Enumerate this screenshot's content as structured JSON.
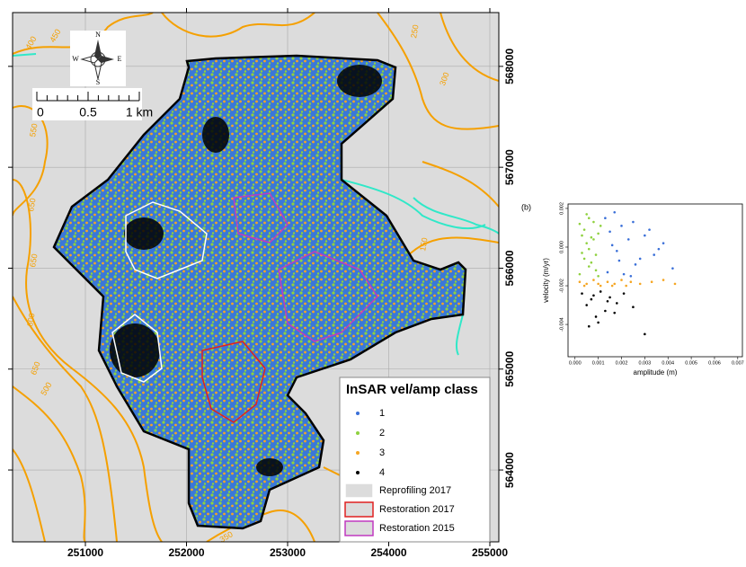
{
  "map": {
    "xlim": [
      250280,
      255089
    ],
    "ylim": [
      563288,
      568533
    ],
    "xticks": [
      251000,
      252000,
      253000,
      254000,
      255000
    ],
    "yticks": [
      564000,
      565000,
      566000,
      567000,
      568000
    ],
    "grid": true,
    "contour_labels": [
      "400",
      "450",
      "250",
      "300",
      "550",
      "650",
      "150",
      "650",
      "600",
      "650",
      "500",
      "350"
    ],
    "compass": {
      "n": "N",
      "s": "S",
      "e": "E",
      "w": "W"
    },
    "scale_bar": [
      "0",
      "0.5",
      "1 km"
    ],
    "legend": {
      "title": "InSAR vel/amp class",
      "points": [
        {
          "label": "1",
          "color": "#3a6fd8"
        },
        {
          "label": "2",
          "color": "#8fd13f"
        },
        {
          "label": "3",
          "color": "#f5a623"
        },
        {
          "label": "4",
          "color": "#000000"
        }
      ],
      "areas": [
        {
          "label": "Reprofiling 2017",
          "color": "#ffffff"
        },
        {
          "label": "Restoration 2017",
          "color": "#e02020"
        },
        {
          "label": "Restoration 2015",
          "color": "#c03ac0"
        }
      ]
    }
  },
  "chart_data": {
    "type": "scatter",
    "panel_label": "(b)",
    "x_label": "amplitude (m)",
    "y_label": "velocity (m/yr)",
    "xlim": [
      -0.0003,
      0.0072
    ],
    "ylim": [
      -0.00567,
      0.00223
    ],
    "xticks": [
      {
        "value": 0,
        "label": "0.000"
      },
      {
        "value": 0.001,
        "label": "0.001"
      },
      {
        "value": 0.002,
        "label": "0.002"
      },
      {
        "value": 0.003,
        "label": "0.003"
      },
      {
        "value": 0.004,
        "label": "0.004"
      },
      {
        "value": 0.005,
        "label": "0.005"
      },
      {
        "value": 0.006,
        "label": "0.006"
      },
      {
        "value": 0.007,
        "label": "0.007"
      }
    ],
    "yticks": [
      {
        "value": 0.002,
        "label": "0.002"
      },
      {
        "value": 0,
        "label": "0.000"
      },
      {
        "value": -0.002,
        "label": "-0.002"
      },
      {
        "value": -0.004,
        "label": "-0.004"
      }
    ],
    "series": [
      {
        "name": "2",
        "color": "#8fd13f",
        "x": [
          0.0002,
          0.0004,
          0.0006,
          0.0008,
          0.001,
          0.0003,
          0.0005,
          0.0007,
          0.0009,
          0.0011,
          0.0002,
          0.0004,
          0.0006,
          0.0008,
          0.001,
          0.0005,
          0.0007,
          0.0003,
          0.0009,
          0.0006
        ],
        "values": [
          0.0012,
          0.0009,
          0.0015,
          0.0004,
          0.0007,
          -0.0003,
          0.0002,
          -0.0008,
          -0.0012,
          0.0011,
          -0.0014,
          -0.0006,
          -0.0001,
          0.0013,
          -0.0015,
          0.0017,
          0.0005,
          0.0006,
          -0.0004,
          -0.001
        ]
      },
      {
        "name": "1",
        "color": "#3a6fd8",
        "x": [
          0.0013,
          0.0015,
          0.0018,
          0.002,
          0.0023,
          0.0026,
          0.003,
          0.0034,
          0.0038,
          0.0042,
          0.0014,
          0.0017,
          0.0021,
          0.0025,
          0.0028,
          0.0032,
          0.0016,
          0.0019,
          0.0024,
          0.0036
        ],
        "values": [
          0.0015,
          0.0008,
          -0.0002,
          0.0011,
          0.0004,
          -0.0009,
          0.0006,
          -0.0004,
          0.0002,
          -0.0011,
          -0.0013,
          0.0018,
          -0.0014,
          0.0013,
          -0.0006,
          0.0009,
          0.0001,
          -0.0007,
          -0.0015,
          -0.0001
        ]
      },
      {
        "name": "3",
        "color": "#f5a623",
        "x": [
          0.0002,
          0.0005,
          0.0008,
          0.0011,
          0.0014,
          0.0017,
          0.002,
          0.0024,
          0.0028,
          0.0033,
          0.0038,
          0.0043,
          0.0004,
          0.001,
          0.0016,
          0.0022
        ],
        "values": [
          -0.0018,
          -0.0019,
          -0.0017,
          -0.002,
          -0.0018,
          -0.0019,
          -0.0017,
          -0.0018,
          -0.0019,
          -0.0018,
          -0.0017,
          -0.0019,
          -0.002,
          -0.0019,
          -0.002,
          -0.002
        ]
      },
      {
        "name": "4",
        "color": "#000000",
        "x": [
          0.0003,
          0.0005,
          0.0007,
          0.0009,
          0.0011,
          0.0013,
          0.0015,
          0.0018,
          0.0021,
          0.0025,
          0.003,
          0.0006,
          0.001,
          0.0014,
          0.0008,
          0.0017
        ],
        "values": [
          -0.0024,
          -0.003,
          -0.0027,
          -0.0036,
          -0.0023,
          -0.0033,
          -0.0026,
          -0.0029,
          -0.0024,
          -0.0031,
          -0.0045,
          -0.0041,
          -0.0039,
          -0.0028,
          -0.0025,
          -0.0034
        ]
      }
    ]
  }
}
